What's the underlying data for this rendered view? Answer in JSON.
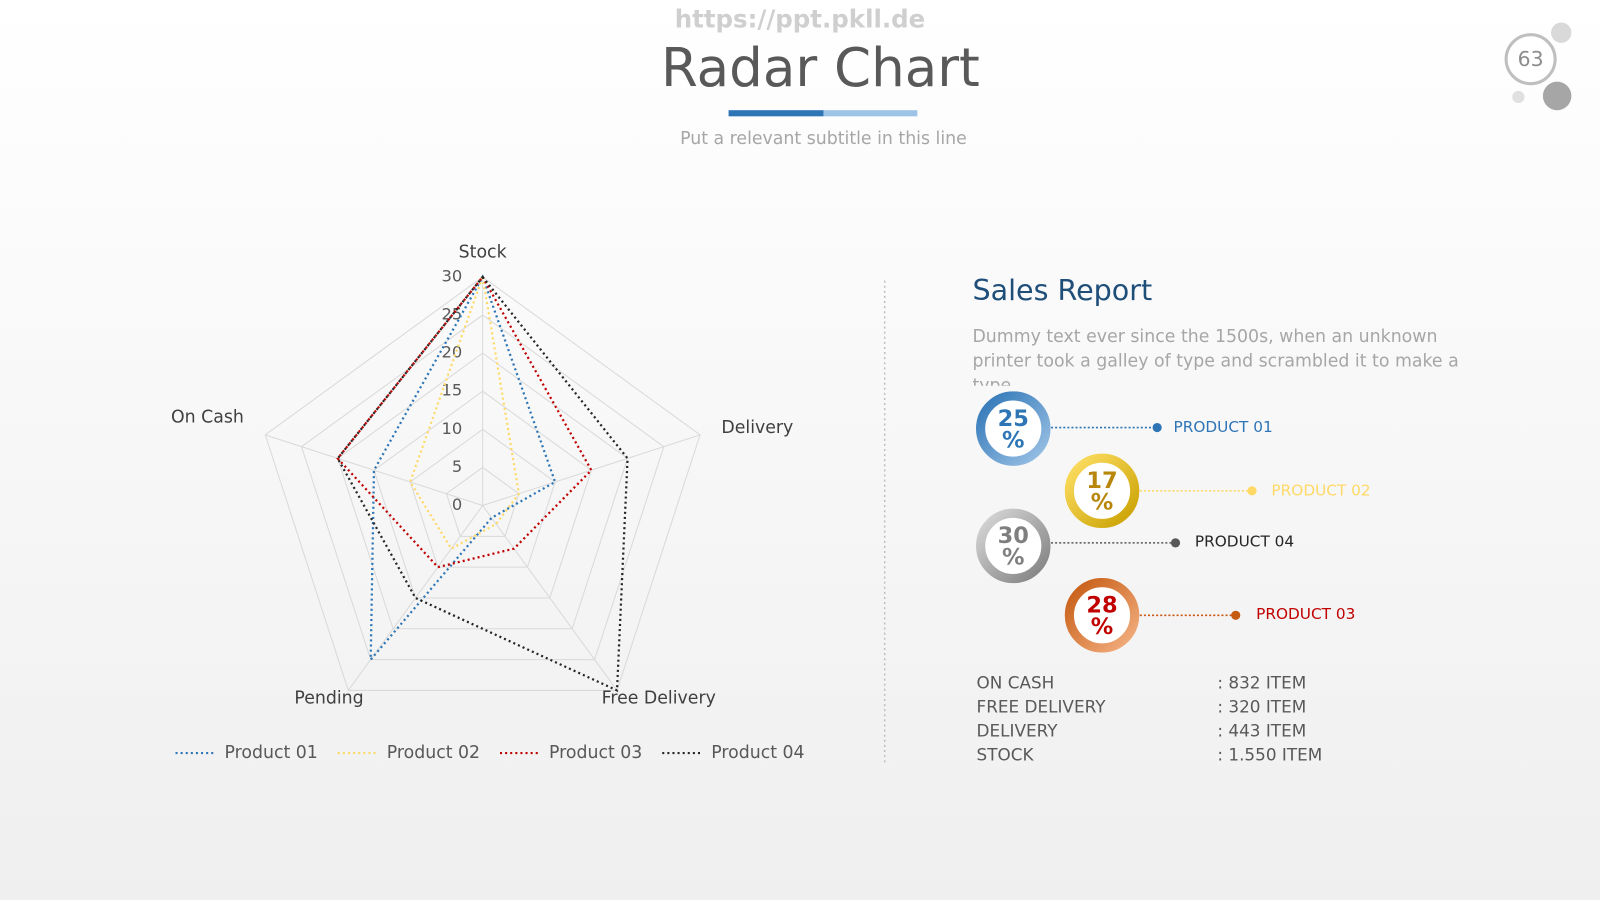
{
  "header": {
    "watermark": "https://ppt.pkll.de",
    "title": "Radar Chart",
    "subtitle": "Put a relevant subtitle in this line",
    "page_number": "63"
  },
  "chart_data": {
    "type": "radar",
    "categories": [
      "Stock",
      "Delivery",
      "Free Delivery",
      "Pending",
      "On Cash"
    ],
    "ylim": [
      0,
      30
    ],
    "yticks": [
      0,
      5,
      10,
      15,
      20,
      25,
      30
    ],
    "grid": true,
    "legend": "bottom",
    "series": [
      {
        "name": "Product 01",
        "color": "#2e75b6",
        "values": [
          30,
          10,
          2,
          25,
          15
        ]
      },
      {
        "name": "Product 02",
        "color": "#ffd966",
        "values": [
          30,
          5,
          3,
          7,
          10
        ]
      },
      {
        "name": "Product 03",
        "color": "#c00000",
        "values": [
          30,
          15,
          7,
          10,
          20
        ]
      },
      {
        "name": "Product 04",
        "color": "#262626",
        "values": [
          30,
          20,
          30,
          15,
          20
        ]
      }
    ]
  },
  "report": {
    "title": "Sales Report",
    "description": "Dummy text ever since the 1500s, when an unknown printer took a galley of type and scrambled it to make a type.",
    "items": [
      {
        "percent": "25",
        "unit": "%",
        "label": "PRODUCT 01"
      },
      {
        "percent": "17",
        "unit": "%",
        "label": "PRODUCT 02"
      },
      {
        "percent": "30",
        "unit": "%",
        "label": "PRODUCT 04"
      },
      {
        "percent": "28",
        "unit": "%",
        "label": "PRODUCT 03"
      }
    ],
    "stats": [
      {
        "label": "ON CASH",
        "value": ": 832 ITEM"
      },
      {
        "label": "FREE DELIVERY",
        "value": ": 320 ITEM"
      },
      {
        "label": "DELIVERY",
        "value": ": 443 ITEM"
      },
      {
        "label": "STOCK",
        "value": ": 1.550 ITEM"
      }
    ]
  }
}
